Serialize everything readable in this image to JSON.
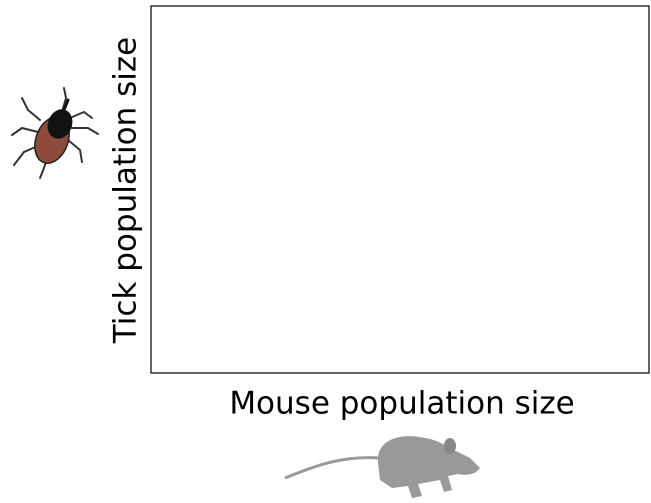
{
  "chart_data": {
    "type": "scatter",
    "x_label": "Mouse population size",
    "y_label": "Tick population size"
  }
}
